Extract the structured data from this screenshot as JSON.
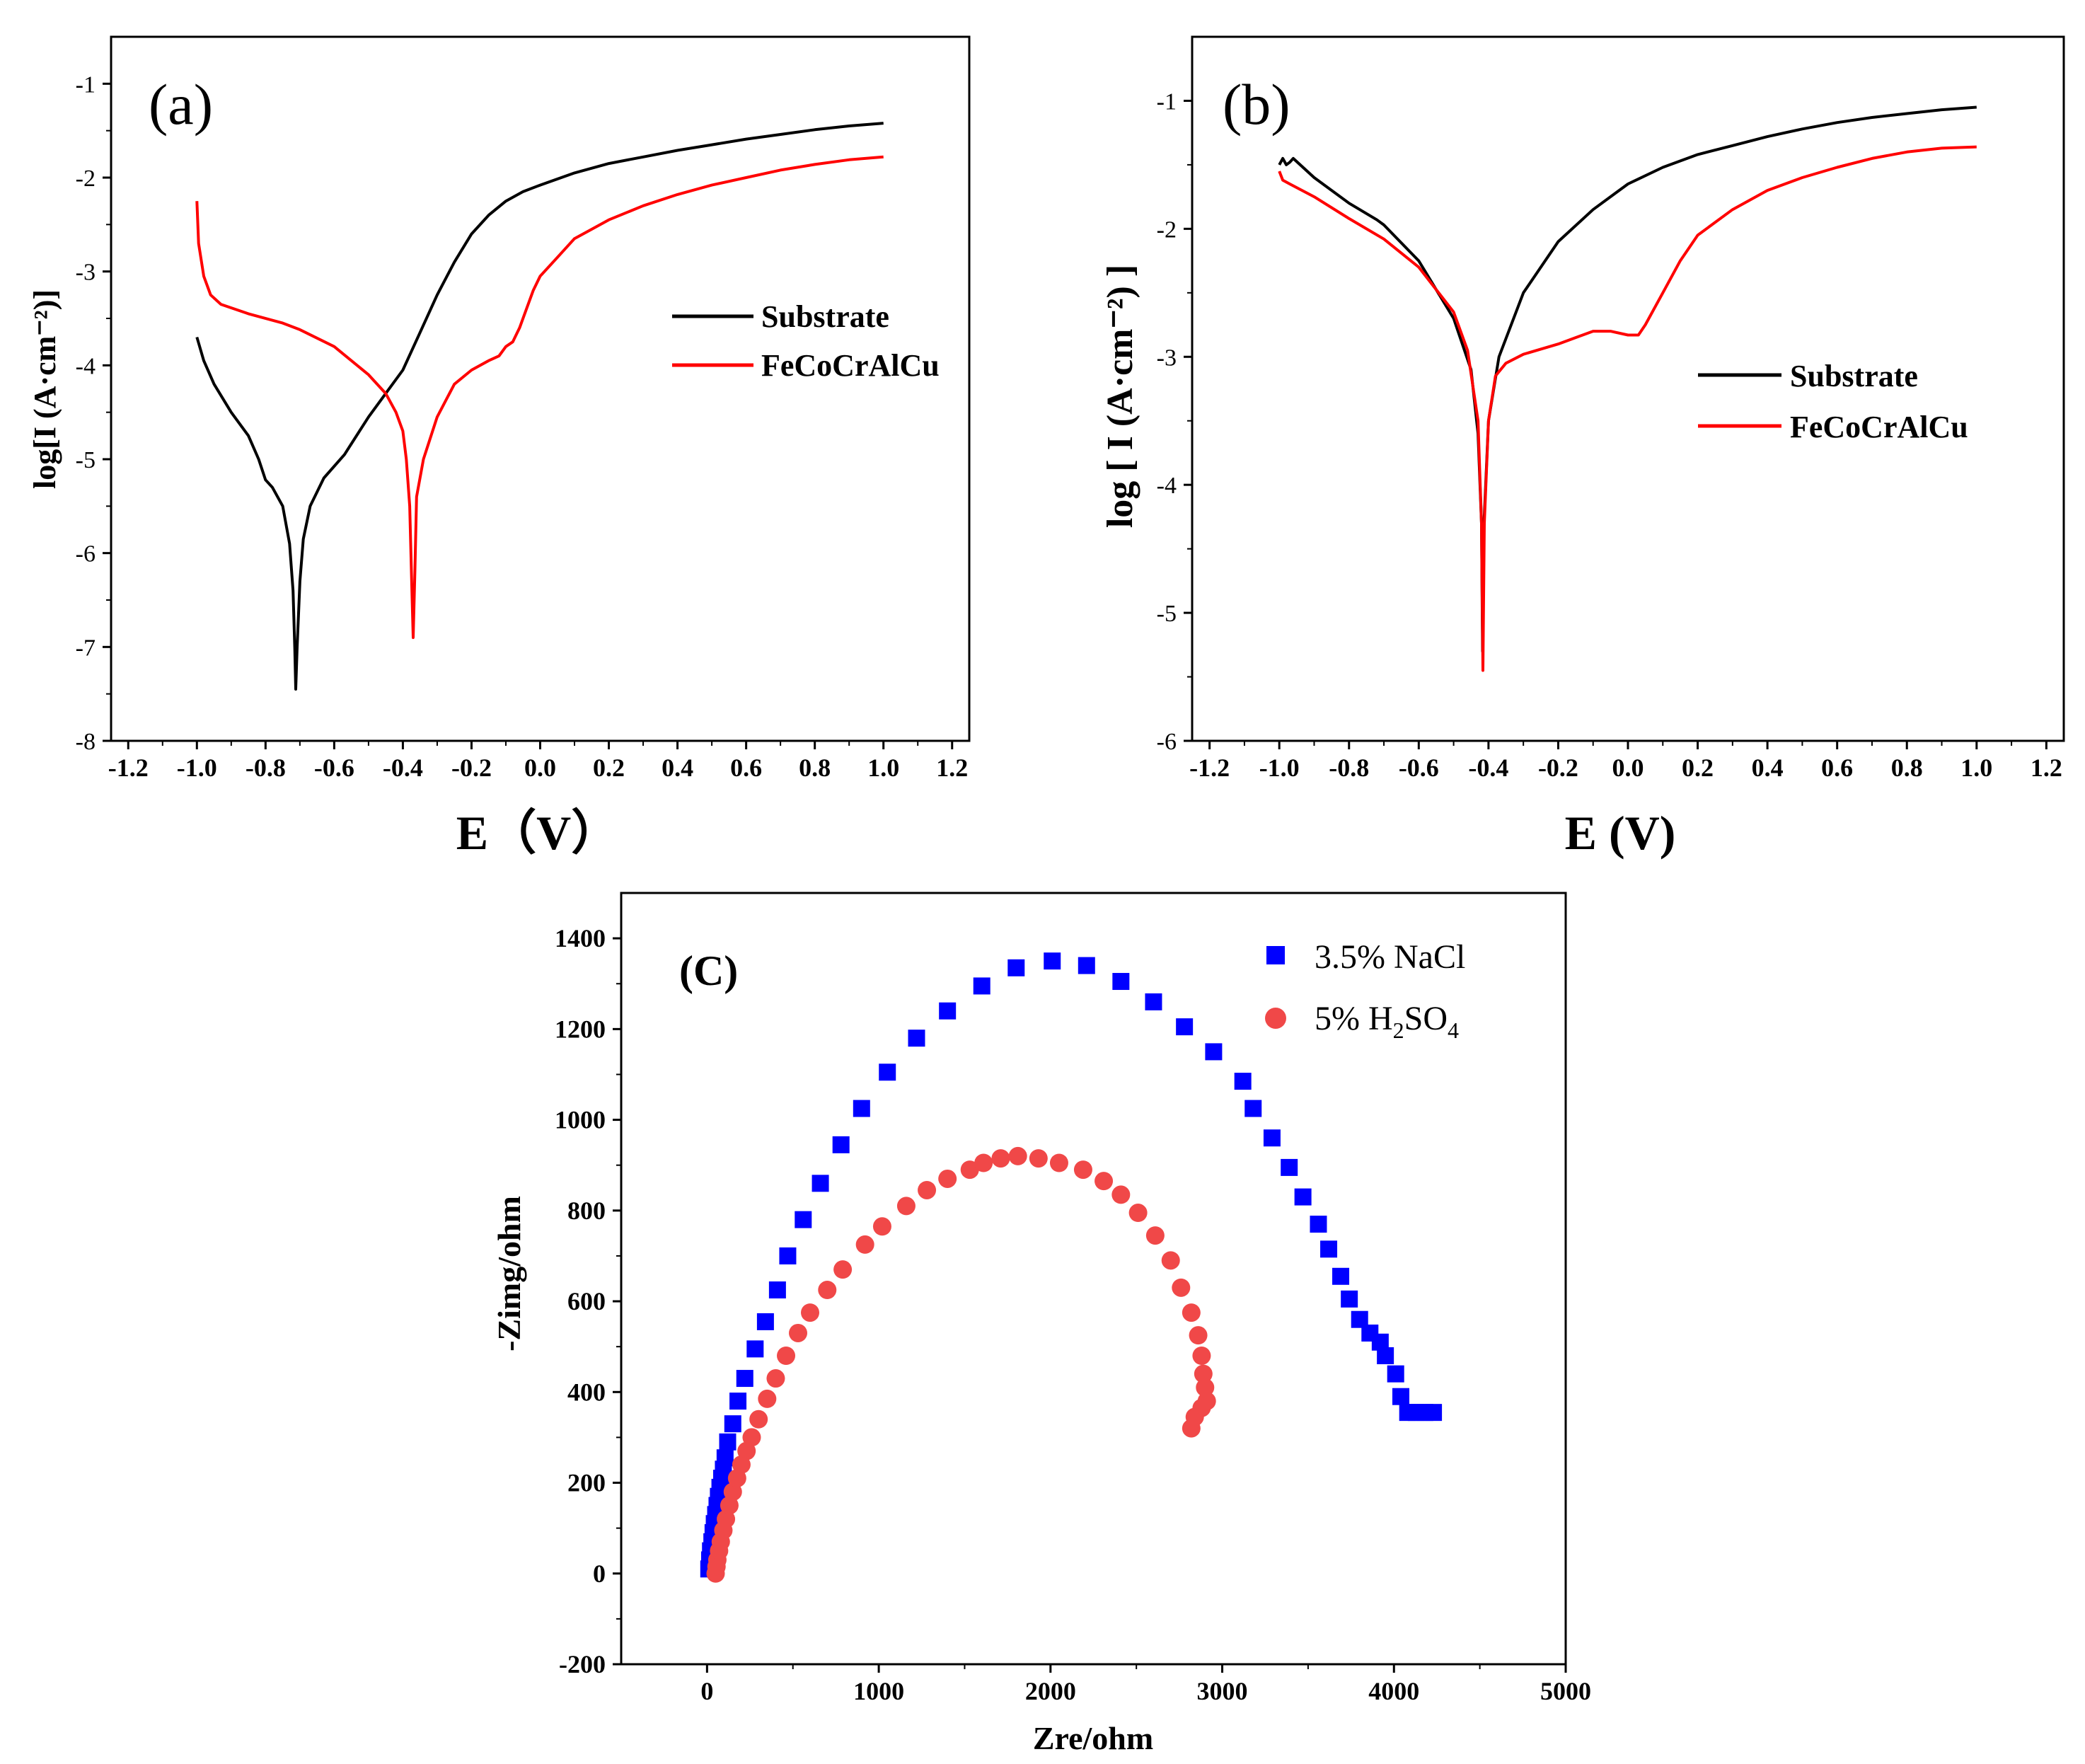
{
  "chart_data": [
    {
      "type": "line",
      "panel_label": "(a)",
      "xlabel": "E（V）",
      "ylabel": "log[I (A·cm⁻²)]",
      "xlim": [
        -1.25,
        1.25
      ],
      "ylim": [
        -8,
        -0.5
      ],
      "xticks": [
        "-1.2",
        "-1.0",
        "-0.8",
        "-0.6",
        "-0.4",
        "-0.2",
        "0.0",
        "0.2",
        "0.4",
        "0.6",
        "0.8",
        "1.0",
        "1.2"
      ],
      "yticks": [
        "-8",
        "-7",
        "-6",
        "-5",
        "-4",
        "-3",
        "-2",
        "-1"
      ],
      "legend": [
        "Substrate",
        "FeCoCrAlCu"
      ],
      "series": [
        {
          "name": "Substrate",
          "color": "#000000",
          "points": [
            [
              -1.0,
              -3.7
            ],
            [
              -0.98,
              -3.95
            ],
            [
              -0.95,
              -4.2
            ],
            [
              -0.9,
              -4.5
            ],
            [
              -0.85,
              -4.75
            ],
            [
              -0.82,
              -5.0
            ],
            [
              -0.8,
              -5.22
            ],
            [
              -0.78,
              -5.3
            ],
            [
              -0.75,
              -5.5
            ],
            [
              -0.73,
              -5.9
            ],
            [
              -0.72,
              -6.4
            ],
            [
              -0.715,
              -7.0
            ],
            [
              -0.712,
              -7.45
            ],
            [
              -0.708,
              -7.0
            ],
            [
              -0.7,
              -6.3
            ],
            [
              -0.69,
              -5.85
            ],
            [
              -0.67,
              -5.5
            ],
            [
              -0.63,
              -5.2
            ],
            [
              -0.57,
              -4.95
            ],
            [
              -0.5,
              -4.55
            ],
            [
              -0.45,
              -4.3
            ],
            [
              -0.4,
              -4.05
            ],
            [
              -0.35,
              -3.65
            ],
            [
              -0.3,
              -3.25
            ],
            [
              -0.25,
              -2.9
            ],
            [
              -0.2,
              -2.6
            ],
            [
              -0.15,
              -2.4
            ],
            [
              -0.1,
              -2.25
            ],
            [
              -0.05,
              -2.15
            ],
            [
              0.0,
              -2.08
            ],
            [
              0.1,
              -1.95
            ],
            [
              0.2,
              -1.85
            ],
            [
              0.3,
              -1.78
            ],
            [
              0.4,
              -1.71
            ],
            [
              0.5,
              -1.65
            ],
            [
              0.6,
              -1.59
            ],
            [
              0.7,
              -1.54
            ],
            [
              0.8,
              -1.49
            ],
            [
              0.9,
              -1.45
            ],
            [
              1.0,
              -1.42
            ]
          ]
        },
        {
          "name": "FeCoCrAlCu",
          "color": "#ff0000",
          "points": [
            [
              -1.0,
              -2.25
            ],
            [
              -0.995,
              -2.7
            ],
            [
              -0.98,
              -3.05
            ],
            [
              -0.96,
              -3.25
            ],
            [
              -0.93,
              -3.35
            ],
            [
              -0.85,
              -3.45
            ],
            [
              -0.75,
              -3.55
            ],
            [
              -0.7,
              -3.62
            ],
            [
              -0.6,
              -3.8
            ],
            [
              -0.5,
              -4.1
            ],
            [
              -0.45,
              -4.3
            ],
            [
              -0.42,
              -4.5
            ],
            [
              -0.4,
              -4.7
            ],
            [
              -0.39,
              -5.0
            ],
            [
              -0.38,
              -5.5
            ],
            [
              -0.375,
              -6.2
            ],
            [
              -0.37,
              -6.9
            ],
            [
              -0.365,
              -6.2
            ],
            [
              -0.36,
              -5.4
            ],
            [
              -0.34,
              -5.0
            ],
            [
              -0.3,
              -4.55
            ],
            [
              -0.25,
              -4.2
            ],
            [
              -0.2,
              -4.05
            ],
            [
              -0.15,
              -3.95
            ],
            [
              -0.12,
              -3.9
            ],
            [
              -0.1,
              -3.8
            ],
            [
              -0.08,
              -3.75
            ],
            [
              -0.06,
              -3.6
            ],
            [
              -0.04,
              -3.4
            ],
            [
              -0.02,
              -3.2
            ],
            [
              0.0,
              -3.05
            ],
            [
              0.05,
              -2.85
            ],
            [
              0.1,
              -2.65
            ],
            [
              0.15,
              -2.55
            ],
            [
              0.2,
              -2.45
            ],
            [
              0.3,
              -2.3
            ],
            [
              0.4,
              -2.18
            ],
            [
              0.5,
              -2.08
            ],
            [
              0.6,
              -2.0
            ],
            [
              0.7,
              -1.92
            ],
            [
              0.8,
              -1.86
            ],
            [
              0.9,
              -1.81
            ],
            [
              1.0,
              -1.78
            ]
          ]
        }
      ]
    },
    {
      "type": "line",
      "panel_label": "(b)",
      "xlabel": "E (V)",
      "ylabel": "log [ I (A·cm⁻²) ]",
      "xlim": [
        -1.25,
        1.25
      ],
      "ylim": [
        -6,
        -0.5
      ],
      "xticks": [
        "-1.2",
        "-1.0",
        "-0.8",
        "-0.6",
        "-0.4",
        "-0.2",
        "0.0",
        "0.2",
        "0.4",
        "0.6",
        "0.8",
        "1.0",
        "1.2"
      ],
      "yticks": [
        "-6",
        "-5",
        "-4",
        "-3",
        "-2",
        "-1"
      ],
      "legend": [
        "Substrate",
        "FeCoCrAlCu"
      ],
      "series": [
        {
          "name": "Substrate",
          "color": "#000000",
          "points": [
            [
              -1.0,
              -1.5
            ],
            [
              -0.99,
              -1.45
            ],
            [
              -0.98,
              -1.5
            ],
            [
              -0.97,
              -1.48
            ],
            [
              -0.96,
              -1.45
            ],
            [
              -0.9,
              -1.6
            ],
            [
              -0.8,
              -1.8
            ],
            [
              -0.72,
              -1.93
            ],
            [
              -0.7,
              -1.97
            ],
            [
              -0.6,
              -2.25
            ],
            [
              -0.5,
              -2.7
            ],
            [
              -0.45,
              -3.1
            ],
            [
              -0.43,
              -3.6
            ],
            [
              -0.42,
              -4.3
            ],
            [
              -0.417,
              -5.3
            ],
            [
              -0.413,
              -4.3
            ],
            [
              -0.4,
              -3.5
            ],
            [
              -0.37,
              -3.0
            ],
            [
              -0.3,
              -2.5
            ],
            [
              -0.2,
              -2.1
            ],
            [
              -0.1,
              -1.85
            ],
            [
              0.0,
              -1.65
            ],
            [
              0.1,
              -1.52
            ],
            [
              0.2,
              -1.42
            ],
            [
              0.3,
              -1.35
            ],
            [
              0.4,
              -1.28
            ],
            [
              0.5,
              -1.22
            ],
            [
              0.6,
              -1.17
            ],
            [
              0.7,
              -1.13
            ],
            [
              0.8,
              -1.1
            ],
            [
              0.9,
              -1.07
            ],
            [
              1.0,
              -1.05
            ]
          ]
        },
        {
          "name": "FeCoCrAlCu",
          "color": "#ff0000",
          "points": [
            [
              -1.0,
              -1.55
            ],
            [
              -0.99,
              -1.62
            ],
            [
              -0.97,
              -1.65
            ],
            [
              -0.9,
              -1.75
            ],
            [
              -0.8,
              -1.92
            ],
            [
              -0.7,
              -2.08
            ],
            [
              -0.6,
              -2.3
            ],
            [
              -0.5,
              -2.65
            ],
            [
              -0.46,
              -2.95
            ],
            [
              -0.43,
              -3.5
            ],
            [
              -0.42,
              -4.3
            ],
            [
              -0.416,
              -5.45
            ],
            [
              -0.412,
              -4.3
            ],
            [
              -0.4,
              -3.5
            ],
            [
              -0.38,
              -3.15
            ],
            [
              -0.35,
              -3.05
            ],
            [
              -0.3,
              -2.98
            ],
            [
              -0.2,
              -2.9
            ],
            [
              -0.15,
              -2.85
            ],
            [
              -0.1,
              -2.8
            ],
            [
              -0.05,
              -2.8
            ],
            [
              0.0,
              -2.83
            ],
            [
              0.03,
              -2.83
            ],
            [
              0.05,
              -2.75
            ],
            [
              0.1,
              -2.5
            ],
            [
              0.15,
              -2.25
            ],
            [
              0.2,
              -2.05
            ],
            [
              0.3,
              -1.85
            ],
            [
              0.4,
              -1.7
            ],
            [
              0.5,
              -1.6
            ],
            [
              0.6,
              -1.52
            ],
            [
              0.7,
              -1.45
            ],
            [
              0.8,
              -1.4
            ],
            [
              0.9,
              -1.37
            ],
            [
              1.0,
              -1.36
            ]
          ]
        }
      ]
    },
    {
      "type": "scatter",
      "panel_label": "(C)",
      "xlabel": "Zre/ohm",
      "ylabel": "-Zimg/ohm",
      "xlim": [
        -500,
        5000
      ],
      "ylim": [
        -200,
        1500
      ],
      "xticks": [
        "0",
        "1000",
        "2000",
        "3000",
        "4000",
        "5000"
      ],
      "yticks": [
        "-200",
        "0",
        "200",
        "400",
        "600",
        "800",
        "1000",
        "1200",
        "1400"
      ],
      "legend": [
        "3.5% NaCl",
        "5% H2SO4"
      ],
      "series": [
        {
          "name": "3.5% NaCl",
          "color": "#0000ff",
          "marker": "square",
          "points": [
            [
              10,
              10
            ],
            [
              15,
              30
            ],
            [
              20,
              50
            ],
            [
              28,
              70
            ],
            [
              35,
              90
            ],
            [
              42,
              110
            ],
            [
              50,
              130
            ],
            [
              58,
              150
            ],
            [
              66,
              170
            ],
            [
              75,
              190
            ],
            [
              85,
              210
            ],
            [
              95,
              230
            ],
            [
              105,
              255
            ],
            [
              120,
              290
            ],
            [
              150,
              330
            ],
            [
              180,
              380
            ],
            [
              220,
              430
            ],
            [
              280,
              495
            ],
            [
              340,
              555
            ],
            [
              410,
              625
            ],
            [
              470,
              700
            ],
            [
              560,
              780
            ],
            [
              660,
              860
            ],
            [
              780,
              945
            ],
            [
              900,
              1025
            ],
            [
              1050,
              1105
            ],
            [
              1220,
              1180
            ],
            [
              1400,
              1240
            ],
            [
              1600,
              1295
            ],
            [
              1800,
              1335
            ],
            [
              2010,
              1350
            ],
            [
              2210,
              1340
            ],
            [
              2410,
              1305
            ],
            [
              2600,
              1260
            ],
            [
              2780,
              1205
            ],
            [
              2950,
              1150
            ],
            [
              3120,
              1085
            ],
            [
              3180,
              1025
            ],
            [
              3290,
              960
            ],
            [
              3390,
              895
            ],
            [
              3470,
              830
            ],
            [
              3560,
              770
            ],
            [
              3620,
              715
            ],
            [
              3690,
              655
            ],
            [
              3740,
              605
            ],
            [
              3800,
              560
            ],
            [
              3860,
              530
            ],
            [
              3920,
              510
            ],
            [
              3950,
              480
            ],
            [
              4010,
              440
            ],
            [
              4040,
              390
            ],
            [
              4080,
              355
            ],
            [
              4130,
              355
            ],
            [
              4180,
              355
            ],
            [
              4230,
              355
            ]
          ]
        },
        {
          "name": "5% H2SO4",
          "color": "#f04848",
          "marker": "circle",
          "points": [
            [
              50,
              0
            ],
            [
              55,
              15
            ],
            [
              60,
              30
            ],
            [
              70,
              50
            ],
            [
              80,
              70
            ],
            [
              95,
              95
            ],
            [
              110,
              120
            ],
            [
              130,
              150
            ],
            [
              150,
              180
            ],
            [
              175,
              210
            ],
            [
              200,
              240
            ],
            [
              230,
              270
            ],
            [
              260,
              300
            ],
            [
              300,
              340
            ],
            [
              350,
              385
            ],
            [
              400,
              430
            ],
            [
              460,
              480
            ],
            [
              530,
              530
            ],
            [
              600,
              575
            ],
            [
              700,
              625
            ],
            [
              790,
              670
            ],
            [
              920,
              725
            ],
            [
              1020,
              765
            ],
            [
              1160,
              810
            ],
            [
              1280,
              845
            ],
            [
              1400,
              870
            ],
            [
              1530,
              890
            ],
            [
              1610,
              905
            ],
            [
              1710,
              915
            ],
            [
              1810,
              920
            ],
            [
              1930,
              915
            ],
            [
              2050,
              905
            ],
            [
              2190,
              890
            ],
            [
              2310,
              865
            ],
            [
              2410,
              835
            ],
            [
              2510,
              795
            ],
            [
              2610,
              745
            ],
            [
              2700,
              690
            ],
            [
              2760,
              630
            ],
            [
              2820,
              575
            ],
            [
              2860,
              525
            ],
            [
              2880,
              480
            ],
            [
              2890,
              440
            ],
            [
              2900,
              410
            ],
            [
              2910,
              380
            ],
            [
              2880,
              365
            ],
            [
              2840,
              345
            ],
            [
              2820,
              320
            ]
          ]
        }
      ]
    }
  ]
}
